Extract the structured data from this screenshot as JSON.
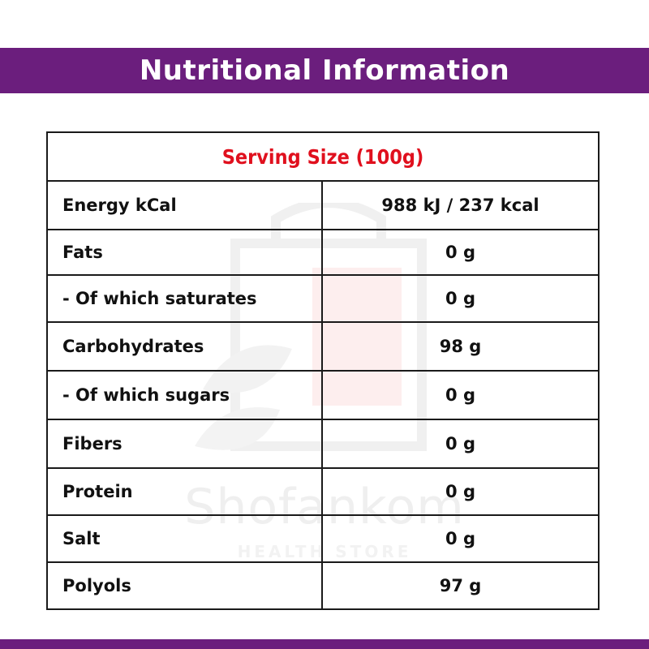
{
  "header": {
    "title": "Nutritional Information"
  },
  "table": {
    "serving_size": "Serving Size (100g)",
    "rows": [
      {
        "label": "Energy kCal",
        "value": "988 kJ / 237 kcal"
      },
      {
        "label": "Fats",
        "value": "0 g"
      },
      {
        "label": "- Of which saturates",
        "value": "0 g"
      },
      {
        "label": "Carbohydrates",
        "value": "98 g"
      },
      {
        "label": "- Of which sugars",
        "value": "0 g"
      },
      {
        "label": "Fibers",
        "value": "0 g"
      },
      {
        "label": "Protein",
        "value": "0 g"
      },
      {
        "label": "Salt",
        "value": "0 g"
      },
      {
        "label": "Polyols",
        "value": "97 g"
      }
    ]
  },
  "watermark": {
    "brand": "Shofankom",
    "subtitle": "HEALTH STORE"
  },
  "colors": {
    "band": "#6b1e7d",
    "serving_text": "#e0101e",
    "border": "#1a1a1a"
  }
}
